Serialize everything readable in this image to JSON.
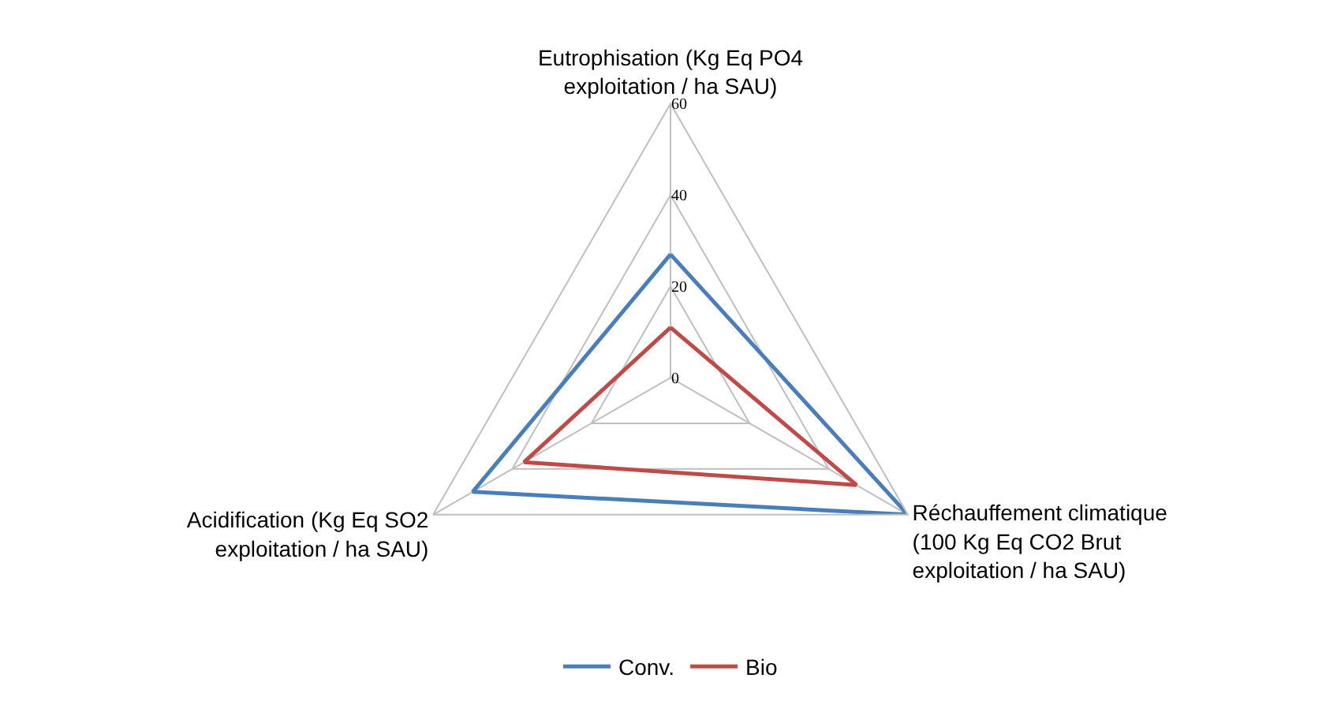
{
  "chart_data": {
    "type": "radar",
    "categories": [
      "Eutrophisation (Kg Eq PO4\nexploitation / ha SAU)",
      "Réchauffement climatique\n(100 Kg Eq CO2 Brut\nexploitation / ha SAU)",
      "Acidification (Kg Eq SO2\nexploitation / ha SAU)"
    ],
    "series": [
      {
        "name": "Conv.",
        "color": "#4a7ebb",
        "values": [
          27,
          60,
          50
        ]
      },
      {
        "name": "Bio",
        "color": "#be4b48",
        "values": [
          11,
          47,
          37
        ]
      }
    ],
    "ylim": [
      0,
      60
    ],
    "yticks": [
      0,
      20,
      40,
      60
    ],
    "grid": true,
    "legend": "bottom",
    "marker": "none",
    "line_style": "solid"
  }
}
